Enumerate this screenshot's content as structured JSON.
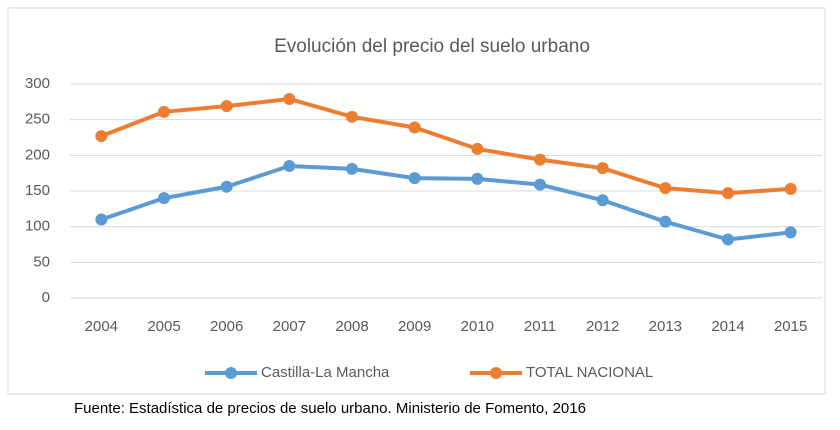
{
  "chart_data": {
    "type": "line",
    "title": "Evolución del precio del suelo urbano",
    "categories": [
      "2004",
      "2005",
      "2006",
      "2007",
      "2008",
      "2009",
      "2010",
      "2011",
      "2012",
      "2013",
      "2014",
      "2015"
    ],
    "series": [
      {
        "name": "Castilla-La Mancha",
        "color": "#5b9bd5",
        "values": [
          110,
          140,
          156,
          185,
          181,
          168,
          167,
          159,
          137,
          107,
          82,
          92
        ]
      },
      {
        "name": "TOTAL NACIONAL",
        "color": "#ed7d31",
        "values": [
          227,
          261,
          269,
          279,
          254,
          239,
          209,
          194,
          182,
          154,
          147,
          153
        ]
      }
    ],
    "ylim": [
      0,
      300
    ],
    "yticks": [
      0,
      50,
      100,
      150,
      200,
      250,
      300
    ],
    "grid": true,
    "legend": "bottom",
    "source": "Fuente: Estadística de precios de suelo urbano. Ministerio de Fomento, 2016"
  }
}
